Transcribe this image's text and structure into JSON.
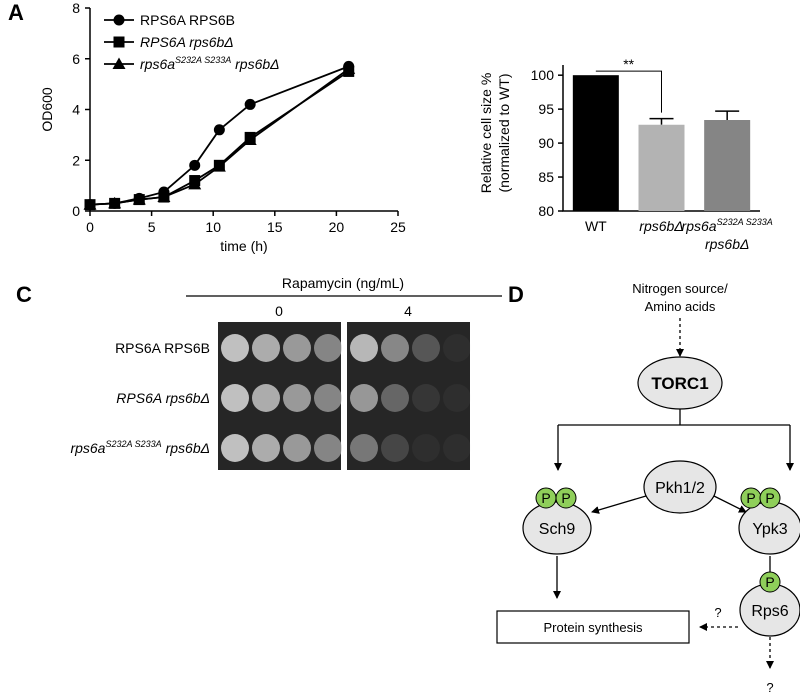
{
  "panel_labels": [
    "A",
    "C",
    "D"
  ],
  "chart_data": [
    {
      "type": "line",
      "xlabel": "time (h)",
      "ylabel": "OD600",
      "x": [
        0,
        2,
        4,
        6,
        8.5,
        10.5,
        13,
        21
      ],
      "xlim": [
        0,
        25
      ],
      "xticks": [
        0,
        5,
        10,
        15,
        20,
        25
      ],
      "ylim": [
        0,
        8
      ],
      "yticks": [
        0,
        2,
        4,
        6,
        8
      ],
      "series": [
        {
          "name": "RPS6A RPS6B",
          "color": "#000000",
          "marker": "circle",
          "values": [
            0.25,
            0.3,
            0.5,
            0.75,
            1.8,
            3.2,
            4.2,
            5.7
          ]
        },
        {
          "name": "RPS6A rps6bΔ",
          "color": "#000000",
          "marker": "square",
          "values": [
            0.25,
            0.3,
            0.45,
            0.55,
            1.2,
            1.8,
            2.9,
            5.5
          ]
        },
        {
          "name": "rps6aS232A S233A rps6bΔ",
          "color": "#000000",
          "marker": "triangle",
          "values": [
            0.25,
            0.3,
            0.45,
            0.55,
            1.05,
            1.75,
            2.8,
            5.6
          ]
        }
      ]
    },
    {
      "type": "bar",
      "ylabel": [
        "Relative cell size %",
        "(normalized to WT)"
      ],
      "categories": [
        "WT",
        "rps6bΔ",
        "rps6aS232A S233A rps6bΔ"
      ],
      "values": [
        100,
        92.7,
        93.4
      ],
      "errors": [
        null,
        0.9,
        1.3
      ],
      "colors": [
        "#000000",
        "#b3b3b3",
        "#858585"
      ],
      "ylim": [
        80,
        101.5
      ],
      "yticks": [
        80,
        85,
        90,
        95,
        100
      ],
      "significance": "**"
    }
  ],
  "spot_assay": {
    "treatment": "Rapamycin (ng/mL)",
    "doses": [
      "0",
      "4"
    ],
    "strains": [
      "RPS6A RPS6B",
      "RPS6A rps6bΔ",
      "rps6aS232A S233A rps6bΔ"
    ]
  },
  "diagram": {
    "input": [
      "Nitrogen source/",
      "Amino acids"
    ],
    "nodes": [
      "TORC1",
      "Pkh1/2",
      "Sch9",
      "Ypk3",
      "Rps6"
    ],
    "phospho": "P",
    "output": "Protein synthesis",
    "unknown": "?"
  }
}
